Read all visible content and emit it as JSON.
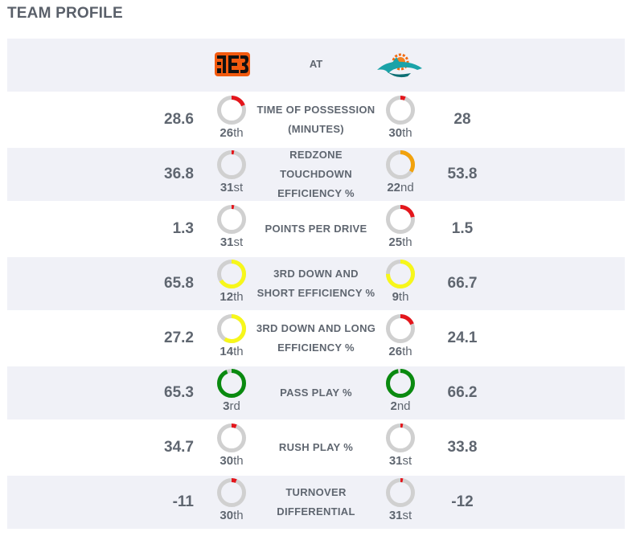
{
  "title": "TEAM PROFILE",
  "header": {
    "at_label": "AT",
    "away_logo": "bengals-logo",
    "home_logo": "dolphins-logo"
  },
  "colors": {
    "track": "#d0d0d0",
    "red": "#e4161c",
    "orange": "#f2a20c",
    "yellow": "#f7f71a",
    "green": "#0a8a10"
  },
  "rows": [
    {
      "label": "TIME OF POSSESSION (MINUTES)",
      "away": {
        "value": "28.6",
        "rank_num": "26",
        "rank_suffix": "th",
        "fill": 0.19,
        "color": "#e4161c"
      },
      "home": {
        "value": "28",
        "rank_num": "30",
        "rank_suffix": "th",
        "fill": 0.06,
        "color": "#e4161c"
      }
    },
    {
      "label": "REDZONE TOUCHDOWN EFFICIENCY %",
      "away": {
        "value": "36.8",
        "rank_num": "31",
        "rank_suffix": "st",
        "fill": 0.03,
        "color": "#e4161c"
      },
      "home": {
        "value": "53.8",
        "rank_num": "22",
        "rank_suffix": "nd",
        "fill": 0.34,
        "color": "#f2a20c"
      }
    },
    {
      "label": "POINTS PER DRIVE",
      "away": {
        "value": "1.3",
        "rank_num": "31",
        "rank_suffix": "st",
        "fill": 0.03,
        "color": "#e4161c"
      },
      "home": {
        "value": "1.5",
        "rank_num": "25",
        "rank_suffix": "th",
        "fill": 0.22,
        "color": "#e4161c"
      }
    },
    {
      "label": "3RD DOWN AND SHORT EFFICIENCY %",
      "away": {
        "value": "65.8",
        "rank_num": "12",
        "rank_suffix": "th",
        "fill": 0.66,
        "color": "#f7f71a"
      },
      "home": {
        "value": "66.7",
        "rank_num": "9",
        "rank_suffix": "th",
        "fill": 0.75,
        "color": "#f7f71a"
      }
    },
    {
      "label": "3RD DOWN AND LONG EFFICIENCY %",
      "away": {
        "value": "27.2",
        "rank_num": "14",
        "rank_suffix": "th",
        "fill": 0.59,
        "color": "#f7f71a"
      },
      "home": {
        "value": "24.1",
        "rank_num": "26",
        "rank_suffix": "th",
        "fill": 0.19,
        "color": "#e4161c"
      }
    },
    {
      "label": "PASS PLAY %",
      "away": {
        "value": "65.3",
        "rank_num": "3",
        "rank_suffix": "rd",
        "fill": 0.94,
        "color": "#0a8a10"
      },
      "home": {
        "value": "66.2",
        "rank_num": "2",
        "rank_suffix": "nd",
        "fill": 0.97,
        "color": "#0a8a10"
      }
    },
    {
      "label": "RUSH PLAY %",
      "away": {
        "value": "34.7",
        "rank_num": "30",
        "rank_suffix": "th",
        "fill": 0.06,
        "color": "#e4161c"
      },
      "home": {
        "value": "33.8",
        "rank_num": "31",
        "rank_suffix": "st",
        "fill": 0.03,
        "color": "#e4161c"
      }
    },
    {
      "label": "TURNOVER DIFFERENTIAL",
      "away": {
        "value": "-11",
        "rank_num": "30",
        "rank_suffix": "th",
        "fill": 0.06,
        "color": "#e4161c"
      },
      "home": {
        "value": "-12",
        "rank_num": "31",
        "rank_suffix": "st",
        "fill": 0.03,
        "color": "#e4161c"
      }
    }
  ]
}
